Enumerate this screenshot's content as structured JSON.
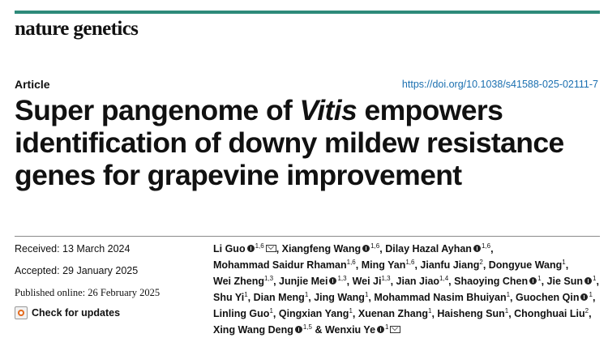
{
  "journal": "nature genetics",
  "article_label": "Article",
  "doi": "https://doi.org/10.1038/s41588-025-02111-7",
  "title": {
    "line1_pre": "Super pangenome of ",
    "line1_italic": "Vitis",
    "line1_post": " empowers",
    "line2": "identification of downy mildew resistance",
    "line3": "genes for grapevine improvement"
  },
  "dates": {
    "received": "Received: 13 March 2024",
    "accepted": "Accepted: 29 January 2025",
    "published": "Published online: 26 February 2025"
  },
  "check_for_updates": "Check for updates",
  "accent_color": "#2e8a7a",
  "link_color": "#1a6fb0",
  "authors": [
    [
      {
        "name": "Li Guo",
        "sup": "1,6",
        "orcid": true,
        "mail": true
      },
      {
        "name": "Xiangfeng Wang",
        "sup": "1,6",
        "orcid": true
      },
      {
        "name": "Dilay Hazal Ayhan",
        "sup": "1,6",
        "orcid": true
      }
    ],
    [
      {
        "name": "Mohammad Saidur Rhaman",
        "sup": "1,6"
      },
      {
        "name": "Ming Yan",
        "sup": "1,6"
      },
      {
        "name": "Jianfu Jiang",
        "sup": "2"
      },
      {
        "name": "Dongyue Wang",
        "sup": "1"
      }
    ],
    [
      {
        "name": "Wei Zheng",
        "sup": "1,3"
      },
      {
        "name": "Junjie Mei",
        "sup": "1,3",
        "orcid": true
      },
      {
        "name": "Wei Ji",
        "sup": "1,3"
      },
      {
        "name": "Jian Jiao",
        "sup": "1,4"
      },
      {
        "name": "Shaoying Chen",
        "sup": "1",
        "orcid": true
      },
      {
        "name": "Jie Sun",
        "sup": "1",
        "orcid": true
      }
    ],
    [
      {
        "name": "Shu Yi",
        "sup": "1"
      },
      {
        "name": "Dian Meng",
        "sup": "1"
      },
      {
        "name": "Jing Wang",
        "sup": "1"
      },
      {
        "name": "Mohammad Nasim Bhuiyan",
        "sup": "1"
      },
      {
        "name": "Guochen Qin",
        "sup": "1",
        "orcid": true
      }
    ],
    [
      {
        "name": "Linling Guo",
        "sup": "1"
      },
      {
        "name": "Qingxian Yang",
        "sup": "1"
      },
      {
        "name": "Xuenan Zhang",
        "sup": "1"
      },
      {
        "name": "Haisheng Sun",
        "sup": "1"
      },
      {
        "name": "Chonghuai Liu",
        "sup": "2"
      }
    ],
    [
      {
        "name": "Xing Wang Deng",
        "sup": "1,5",
        "orcid": true,
        "amp": true
      },
      {
        "name": "Wenxiu Ye",
        "sup": "1",
        "orcid": true,
        "mail": true
      }
    ]
  ]
}
